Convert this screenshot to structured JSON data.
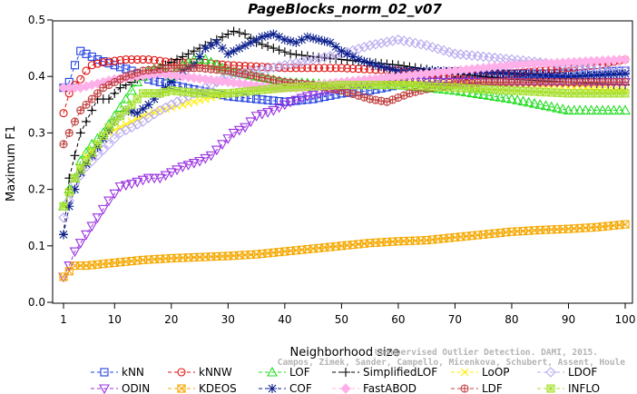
{
  "chart_data": {
    "type": "line",
    "title": "PageBlocks_norm_02_v07",
    "xlabel": "Neighborhood size",
    "ylabel": "Maximum F1",
    "xlim": [
      1,
      100
    ],
    "ylim": [
      0,
      0.5
    ],
    "x_ticks": [
      1,
      10,
      20,
      30,
      40,
      50,
      60,
      70,
      80,
      90,
      100
    ],
    "y_ticks": [
      0.0,
      0.1,
      0.2,
      0.3,
      0.4,
      0.5
    ],
    "grid": false,
    "legend_position": "bottom",
    "watermark": [
      "Unsupervised Outlier Detection. DAMI, 2015.",
      "Campos, Zimek, Sander, Campello, Micenkova, Schubert, Assent, Houle"
    ],
    "series": [
      {
        "name": "kNN",
        "color": "#1f3fe0",
        "marker": "square",
        "points": [
          [
            1,
            0.38
          ],
          [
            2,
            0.39
          ],
          [
            3,
            0.42
          ],
          [
            4,
            0.445
          ],
          [
            5,
            0.44
          ],
          [
            7,
            0.43
          ],
          [
            10,
            0.42
          ],
          [
            13,
            0.41
          ],
          [
            16,
            0.395
          ],
          [
            20,
            0.385
          ],
          [
            25,
            0.375
          ],
          [
            30,
            0.365
          ],
          [
            35,
            0.36
          ],
          [
            40,
            0.355
          ],
          [
            45,
            0.36
          ],
          [
            50,
            0.37
          ],
          [
            55,
            0.375
          ],
          [
            60,
            0.385
          ],
          [
            65,
            0.395
          ],
          [
            70,
            0.405
          ],
          [
            80,
            0.405
          ],
          [
            90,
            0.405
          ],
          [
            100,
            0.41
          ]
        ]
      },
      {
        "name": "kNNW",
        "color": "#e01010",
        "marker": "circle",
        "points": [
          [
            1,
            0.335
          ],
          [
            2,
            0.37
          ],
          [
            3,
            0.385
          ],
          [
            4,
            0.395
          ],
          [
            5,
            0.41
          ],
          [
            6,
            0.42
          ],
          [
            8,
            0.425
          ],
          [
            12,
            0.43
          ],
          [
            16,
            0.43
          ],
          [
            20,
            0.425
          ],
          [
            25,
            0.425
          ],
          [
            30,
            0.42
          ],
          [
            40,
            0.415
          ],
          [
            50,
            0.415
          ],
          [
            60,
            0.41
          ],
          [
            65,
            0.405
          ],
          [
            70,
            0.4
          ],
          [
            80,
            0.405
          ],
          [
            90,
            0.415
          ],
          [
            95,
            0.42
          ],
          [
            100,
            0.43
          ]
        ]
      },
      {
        "name": "LOF",
        "color": "#22dd22",
        "marker": "triangle",
        "points": [
          [
            1,
            0.17
          ],
          [
            2,
            0.2
          ],
          [
            3,
            0.22
          ],
          [
            4,
            0.25
          ],
          [
            6,
            0.28
          ],
          [
            8,
            0.3
          ],
          [
            10,
            0.33
          ],
          [
            12,
            0.36
          ],
          [
            14,
            0.39
          ],
          [
            16,
            0.41
          ],
          [
            18,
            0.415
          ],
          [
            20,
            0.4
          ],
          [
            22,
            0.42
          ],
          [
            24,
            0.43
          ],
          [
            26,
            0.43
          ],
          [
            30,
            0.41
          ],
          [
            35,
            0.4
          ],
          [
            40,
            0.39
          ],
          [
            50,
            0.385
          ],
          [
            60,
            0.385
          ],
          [
            70,
            0.375
          ],
          [
            80,
            0.36
          ],
          [
            90,
            0.34
          ],
          [
            100,
            0.34
          ]
        ]
      },
      {
        "name": "SimplifiedLOF",
        "color": "#000000",
        "marker": "plus",
        "points": [
          [
            1,
            0.12
          ],
          [
            2,
            0.22
          ],
          [
            3,
            0.26
          ],
          [
            4,
            0.3
          ],
          [
            5,
            0.32
          ],
          [
            6,
            0.34
          ],
          [
            7,
            0.36
          ],
          [
            9,
            0.36
          ],
          [
            11,
            0.38
          ],
          [
            13,
            0.39
          ],
          [
            15,
            0.4
          ],
          [
            17,
            0.41
          ],
          [
            19,
            0.42
          ],
          [
            21,
            0.43
          ],
          [
            23,
            0.44
          ],
          [
            25,
            0.45
          ],
          [
            27,
            0.46
          ],
          [
            29,
            0.47
          ],
          [
            31,
            0.48
          ],
          [
            33,
            0.475
          ],
          [
            35,
            0.46
          ],
          [
            38,
            0.45
          ],
          [
            41,
            0.44
          ],
          [
            45,
            0.435
          ],
          [
            50,
            0.43
          ],
          [
            55,
            0.425
          ],
          [
            60,
            0.42
          ],
          [
            70,
            0.405
          ],
          [
            80,
            0.395
          ],
          [
            90,
            0.39
          ],
          [
            100,
            0.385
          ]
        ]
      },
      {
        "name": "LoOP",
        "color": "#ffee00",
        "marker": "cross",
        "points": [
          [
            1,
            0.17
          ],
          [
            3,
            0.22
          ],
          [
            5,
            0.26
          ],
          [
            7,
            0.28
          ],
          [
            9,
            0.3
          ],
          [
            11,
            0.31
          ],
          [
            13,
            0.32
          ],
          [
            15,
            0.33
          ],
          [
            18,
            0.34
          ],
          [
            22,
            0.35
          ],
          [
            26,
            0.36
          ],
          [
            30,
            0.37
          ],
          [
            35,
            0.375
          ],
          [
            40,
            0.38
          ],
          [
            50,
            0.385
          ],
          [
            60,
            0.39
          ],
          [
            70,
            0.39
          ],
          [
            80,
            0.385
          ],
          [
            90,
            0.38
          ],
          [
            100,
            0.375
          ]
        ]
      },
      {
        "name": "LDOF",
        "color": "#b8a8f0",
        "marker": "diamond",
        "points": [
          [
            1,
            0.15
          ],
          [
            3,
            0.21
          ],
          [
            5,
            0.24
          ],
          [
            7,
            0.26
          ],
          [
            9,
            0.28
          ],
          [
            11,
            0.3
          ],
          [
            13,
            0.31
          ],
          [
            15,
            0.32
          ],
          [
            18,
            0.34
          ],
          [
            22,
            0.36
          ],
          [
            26,
            0.38
          ],
          [
            30,
            0.4
          ],
          [
            35,
            0.41
          ],
          [
            40,
            0.42
          ],
          [
            45,
            0.43
          ],
          [
            50,
            0.44
          ],
          [
            55,
            0.455
          ],
          [
            60,
            0.465
          ],
          [
            65,
            0.455
          ],
          [
            70,
            0.44
          ],
          [
            80,
            0.43
          ],
          [
            90,
            0.42
          ],
          [
            100,
            0.41
          ]
        ]
      },
      {
        "name": "ODIN",
        "color": "#9a32e0",
        "marker": "triangle-down",
        "points": [
          [
            1,
            0.045
          ],
          [
            2,
            0.065
          ],
          [
            3,
            0.09
          ],
          [
            5,
            0.12
          ],
          [
            7,
            0.15
          ],
          [
            9,
            0.18
          ],
          [
            11,
            0.205
          ],
          [
            13,
            0.21
          ],
          [
            16,
            0.22
          ],
          [
            18,
            0.22
          ],
          [
            20,
            0.23
          ],
          [
            22,
            0.24
          ],
          [
            25,
            0.25
          ],
          [
            27,
            0.26
          ],
          [
            29,
            0.28
          ],
          [
            31,
            0.3
          ],
          [
            33,
            0.31
          ],
          [
            35,
            0.33
          ],
          [
            38,
            0.34
          ],
          [
            41,
            0.355
          ],
          [
            44,
            0.365
          ],
          [
            48,
            0.375
          ],
          [
            52,
            0.385
          ],
          [
            56,
            0.39
          ],
          [
            60,
            0.39
          ],
          [
            100,
            0.39
          ]
        ]
      },
      {
        "name": "KDEOS",
        "color": "#f5a800",
        "marker": "square-x",
        "points": [
          [
            1,
            0.045
          ],
          [
            3,
            0.065
          ],
          [
            5,
            0.065
          ],
          [
            8,
            0.068
          ],
          [
            10,
            0.07
          ],
          [
            15,
            0.075
          ],
          [
            20,
            0.078
          ],
          [
            25,
            0.08
          ],
          [
            30,
            0.082
          ],
          [
            35,
            0.085
          ],
          [
            40,
            0.09
          ],
          [
            45,
            0.095
          ],
          [
            50,
            0.1
          ],
          [
            55,
            0.105
          ],
          [
            60,
            0.108
          ],
          [
            65,
            0.11
          ],
          [
            70,
            0.115
          ],
          [
            75,
            0.12
          ],
          [
            80,
            0.125
          ],
          [
            85,
            0.128
          ],
          [
            90,
            0.13
          ],
          [
            95,
            0.133
          ],
          [
            100,
            0.138
          ]
        ]
      },
      {
        "name": "COF",
        "color": "#0a1e8c",
        "marker": "asterisk",
        "points": [
          [
            1,
            0.12
          ],
          [
            2,
            0.17
          ],
          [
            3,
            0.2
          ],
          [
            4,
            0.23
          ],
          [
            6,
            0.26
          ],
          [
            8,
            0.29
          ],
          [
            10,
            0.32
          ],
          [
            12,
            0.34
          ],
          [
            14,
            0.335
          ],
          [
            16,
            0.35
          ],
          [
            18,
            0.37
          ],
          [
            20,
            0.39
          ],
          [
            22,
            0.41
          ],
          [
            24,
            0.42
          ],
          [
            26,
            0.45
          ],
          [
            28,
            0.46
          ],
          [
            30,
            0.44
          ],
          [
            32,
            0.45
          ],
          [
            34,
            0.46
          ],
          [
            36,
            0.47
          ],
          [
            38,
            0.475
          ],
          [
            40,
            0.465
          ],
          [
            42,
            0.46
          ],
          [
            44,
            0.47
          ],
          [
            46,
            0.465
          ],
          [
            48,
            0.46
          ],
          [
            50,
            0.445
          ],
          [
            53,
            0.43
          ],
          [
            56,
            0.42
          ],
          [
            60,
            0.41
          ],
          [
            70,
            0.41
          ],
          [
            80,
            0.405
          ],
          [
            90,
            0.4
          ],
          [
            100,
            0.405
          ]
        ]
      },
      {
        "name": "FastABOD",
        "color": "#ffb0e8",
        "marker": "diamond-filled",
        "points": [
          [
            1,
            0.38
          ],
          [
            4,
            0.38
          ],
          [
            6,
            0.385
          ],
          [
            8,
            0.39
          ],
          [
            10,
            0.395
          ],
          [
            14,
            0.4
          ],
          [
            18,
            0.405
          ],
          [
            22,
            0.4
          ],
          [
            26,
            0.395
          ],
          [
            30,
            0.39
          ],
          [
            34,
            0.385
          ],
          [
            38,
            0.38
          ],
          [
            42,
            0.38
          ],
          [
            46,
            0.385
          ],
          [
            50,
            0.39
          ],
          [
            55,
            0.395
          ],
          [
            60,
            0.4
          ],
          [
            65,
            0.405
          ],
          [
            70,
            0.41
          ],
          [
            80,
            0.42
          ],
          [
            90,
            0.425
          ],
          [
            100,
            0.43
          ]
        ]
      },
      {
        "name": "LDF",
        "color": "#c04040",
        "marker": "circle-plus",
        "points": [
          [
            1,
            0.28
          ],
          [
            2,
            0.3
          ],
          [
            3,
            0.32
          ],
          [
            4,
            0.34
          ],
          [
            6,
            0.36
          ],
          [
            8,
            0.38
          ],
          [
            10,
            0.39
          ],
          [
            12,
            0.4
          ],
          [
            15,
            0.41
          ],
          [
            20,
            0.415
          ],
          [
            25,
            0.415
          ],
          [
            30,
            0.41
          ],
          [
            35,
            0.4
          ],
          [
            40,
            0.39
          ],
          [
            45,
            0.385
          ],
          [
            50,
            0.375
          ],
          [
            55,
            0.36
          ],
          [
            58,
            0.355
          ],
          [
            62,
            0.37
          ],
          [
            66,
            0.38
          ],
          [
            70,
            0.385
          ],
          [
            75,
            0.39
          ],
          [
            80,
            0.39
          ],
          [
            90,
            0.39
          ],
          [
            100,
            0.39
          ]
        ]
      },
      {
        "name": "INFLO",
        "color": "#a8e030",
        "marker": "square-star",
        "points": [
          [
            1,
            0.17
          ],
          [
            3,
            0.22
          ],
          [
            5,
            0.25
          ],
          [
            7,
            0.28
          ],
          [
            9,
            0.31
          ],
          [
            11,
            0.33
          ],
          [
            13,
            0.35
          ],
          [
            15,
            0.37
          ],
          [
            18,
            0.37
          ],
          [
            20,
            0.375
          ],
          [
            25,
            0.37
          ],
          [
            30,
            0.37
          ],
          [
            35,
            0.375
          ],
          [
            40,
            0.38
          ],
          [
            50,
            0.385
          ],
          [
            60,
            0.385
          ],
          [
            70,
            0.38
          ],
          [
            80,
            0.375
          ],
          [
            90,
            0.37
          ],
          [
            100,
            0.37
          ]
        ]
      }
    ]
  }
}
